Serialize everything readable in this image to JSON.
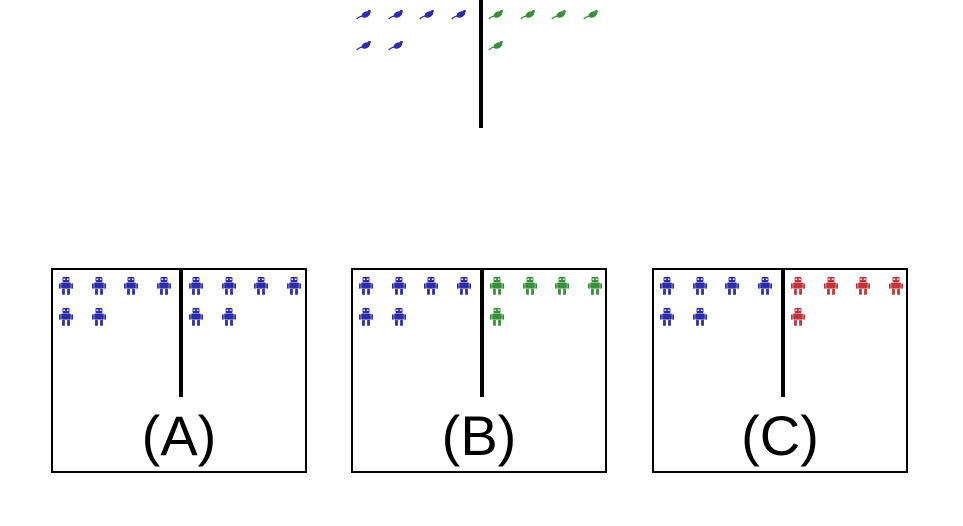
{
  "top_comparison": {
    "left_group": {
      "icon": "mouse-icon",
      "color": "#2d2da8",
      "count": 6
    },
    "right_group": {
      "icon": "mouse-icon",
      "color": "#3a8f3a",
      "count": 5
    }
  },
  "options": [
    {
      "label": "(A)",
      "left_group": {
        "icon": "robot-icon",
        "color": "#2d2da8",
        "count": 6
      },
      "right_group": {
        "icon": "robot-icon",
        "color": "#2d2da8",
        "count": 6
      }
    },
    {
      "label": "(B)",
      "left_group": {
        "icon": "robot-icon",
        "color": "#2d2da8",
        "count": 6
      },
      "right_group": {
        "icon": "robot-icon",
        "color": "#3a8f3a",
        "count": 5
      }
    },
    {
      "label": "(C)",
      "left_group": {
        "icon": "robot-icon",
        "color": "#2d2da8",
        "count": 6
      },
      "right_group": {
        "icon": "robot-icon",
        "color": "#c0343c",
        "count": 5
      }
    }
  ]
}
